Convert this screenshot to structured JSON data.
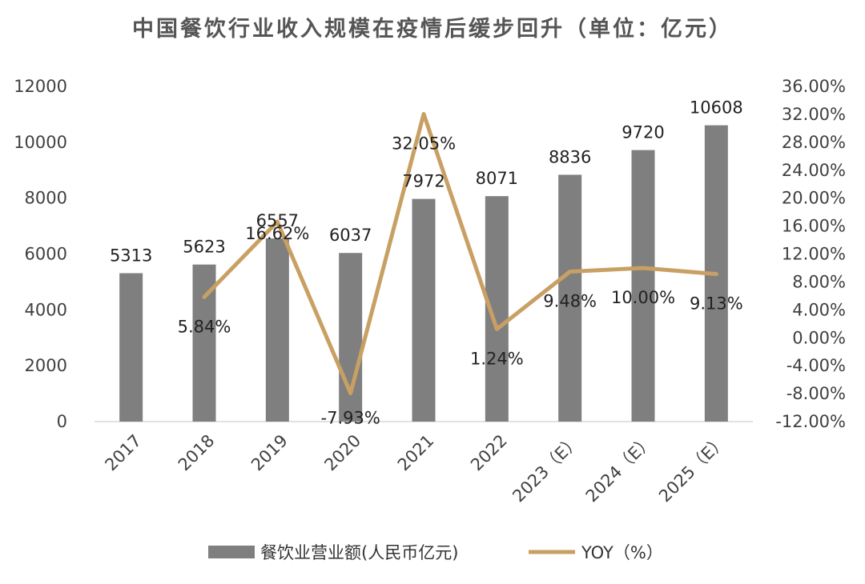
{
  "chart_data": {
    "type": "bar",
    "title": "中国餐饮行业收入规模在疫情后缓步回升（单位：亿元）",
    "categories": [
      "2017",
      "2018",
      "2019",
      "2020",
      "2021",
      "2022",
      "2023（E）",
      "2024（E）",
      "2025（E）"
    ],
    "series": [
      {
        "name": "餐饮业营业额(人民币亿元)",
        "type": "bar",
        "axis": "left",
        "values": [
          5313,
          5623,
          6557,
          6037,
          7972,
          8071,
          8836,
          9720,
          10608
        ],
        "labels": [
          "5313",
          "5623",
          "6557",
          "6037",
          "7972",
          "8071",
          "8836",
          "9720",
          "10608"
        ],
        "color": "#7f7f7f"
      },
      {
        "name": "YOY（%）",
        "type": "line",
        "axis": "right",
        "values": [
          null,
          5.84,
          16.62,
          -7.93,
          32.05,
          1.24,
          9.48,
          10.0,
          9.13
        ],
        "labels": [
          "",
          "5.84%",
          "16.62%",
          "-7.93%",
          "32.05%",
          "1.24%",
          "9.48%",
          "10.00%",
          "9.13%"
        ],
        "color": "#c9a063"
      }
    ],
    "y_left": {
      "range": [
        0,
        12000
      ],
      "ticks": [
        "0",
        "2000",
        "4000",
        "6000",
        "8000",
        "10000",
        "12000"
      ]
    },
    "y_right": {
      "range": [
        -12,
        36
      ],
      "ticks": [
        "-12.00%",
        "-8.00%",
        "-4.00%",
        "0.00%",
        "4.00%",
        "8.00%",
        "12.00%",
        "16.00%",
        "20.00%",
        "24.00%",
        "28.00%",
        "32.00%",
        "36.00%"
      ]
    },
    "grid": false,
    "legend_position": "bottom"
  }
}
